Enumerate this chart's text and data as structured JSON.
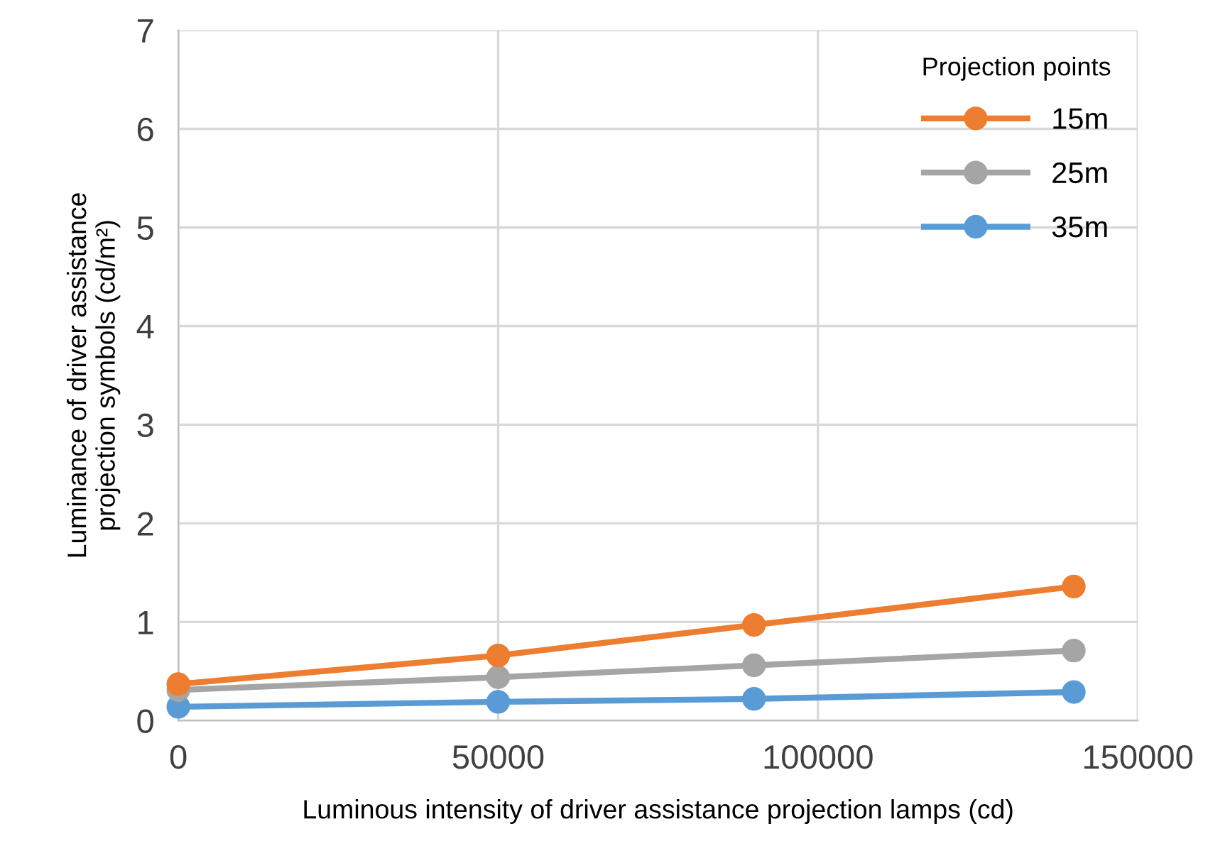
{
  "chart_data": {
    "type": "line",
    "xlabel": "Luminous intensity of driver assistance projection lamps (cd)",
    "ylabel": "Luminance of driver assistance\nprojection symbols (cd/m²)",
    "legend_title": "Projection points",
    "x": [
      0,
      50000,
      90000,
      140000
    ],
    "series": [
      {
        "name": "15m",
        "color": "#ed7d31",
        "values": [
          0.37,
          0.66,
          0.97,
          1.36
        ]
      },
      {
        "name": "25m",
        "color": "#a5a5a5",
        "values": [
          0.31,
          0.44,
          0.56,
          0.71
        ]
      },
      {
        "name": "35m",
        "color": "#5b9bd5",
        "values": [
          0.14,
          0.19,
          0.22,
          0.29
        ]
      }
    ],
    "xlim": [
      0,
      150000
    ],
    "xticks": [
      0,
      50000,
      100000,
      150000
    ],
    "ylim": [
      0,
      7
    ],
    "yticks": [
      0,
      1,
      2,
      3,
      4,
      5,
      6,
      7
    ],
    "grid": true,
    "legend": "top right",
    "marker": "circle",
    "line_style": "solid"
  }
}
